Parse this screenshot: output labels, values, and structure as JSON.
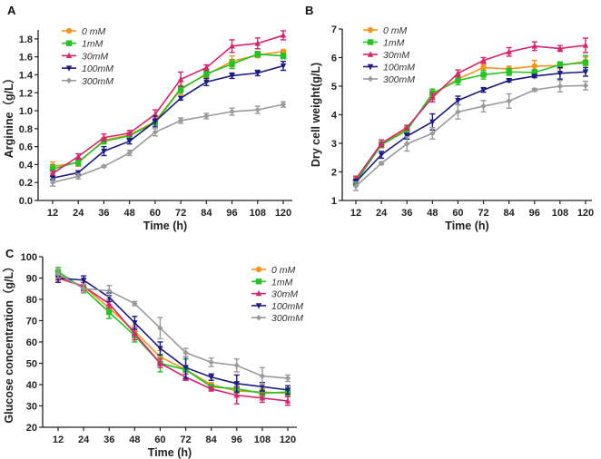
{
  "colors": {
    "0 mM": "#F7941D",
    "1mM": "#22C322",
    "30mM": "#D6246E",
    "100mM": "#1C1C82",
    "300mM": "#9A9A9A"
  },
  "markers": {
    "0 mM": "circle",
    "1mM": "square",
    "30mM": "triangle-up",
    "100mM": "triangle-down",
    "300mM": "diamond"
  },
  "chart_data": [
    {
      "panel": "A",
      "type": "line",
      "xlabel": "Time (h)",
      "ylabel": "Arginine（g/L）",
      "x": [
        12,
        24,
        36,
        48,
        60,
        72,
        84,
        96,
        108,
        120
      ],
      "ylim": [
        0,
        1.9
      ],
      "yticks": [
        "0.0",
        "0.2",
        "0.4",
        "0.6",
        "0.8",
        "1.0",
        "1.2",
        "1.4",
        "1.6",
        "1.8"
      ],
      "legend": "top-left",
      "series": [
        {
          "name": "0 mM",
          "values": [
            0.38,
            0.42,
            0.67,
            0.73,
            0.88,
            1.25,
            1.4,
            1.55,
            1.62,
            1.66
          ],
          "err": [
            0.05,
            0.04,
            0.03,
            0.03,
            0.04,
            0.07,
            0.03,
            0.06,
            0.03,
            0.02
          ]
        },
        {
          "name": "1mM",
          "values": [
            0.35,
            0.43,
            0.66,
            0.72,
            0.87,
            1.24,
            1.41,
            1.52,
            1.63,
            1.61
          ],
          "err": [
            0.05,
            0.04,
            0.03,
            0.03,
            0.03,
            0.04,
            0.03,
            0.05,
            0.03,
            0.03
          ]
        },
        {
          "name": "30mM",
          "values": [
            0.3,
            0.49,
            0.7,
            0.75,
            0.96,
            1.35,
            1.48,
            1.72,
            1.75,
            1.84
          ],
          "err": [
            0.03,
            0.03,
            0.04,
            0.03,
            0.05,
            0.08,
            0.03,
            0.07,
            0.06,
            0.05
          ]
        },
        {
          "name": "100mM",
          "values": [
            0.25,
            0.31,
            0.55,
            0.66,
            0.88,
            1.14,
            1.32,
            1.39,
            1.42,
            1.5
          ],
          "err": [
            0.02,
            0.02,
            0.05,
            0.03,
            0.06,
            0.02,
            0.04,
            0.03,
            0.03,
            0.05
          ]
        },
        {
          "name": "300mM",
          "values": [
            0.2,
            0.27,
            0.38,
            0.53,
            0.76,
            0.89,
            0.94,
            0.99,
            1.01,
            1.07
          ],
          "err": [
            0.04,
            0.03,
            0.01,
            0.03,
            0.04,
            0.03,
            0.03,
            0.04,
            0.04,
            0.03
          ]
        }
      ]
    },
    {
      "panel": "B",
      "type": "line",
      "xlabel": "Time (h)",
      "ylabel": "Dry cell weight(g/L)",
      "x": [
        12,
        24,
        36,
        48,
        60,
        72,
        84,
        96,
        108,
        120
      ],
      "ylim": [
        1,
        7
      ],
      "yticks": [
        "1",
        "2",
        "3",
        "4",
        "5",
        "6",
        "7"
      ],
      "legend": "top-left",
      "series": [
        {
          "name": "0 mM",
          "values": [
            1.7,
            2.95,
            3.5,
            4.7,
            5.25,
            5.65,
            5.6,
            5.7,
            5.72,
            5.87
          ],
          "err": [
            0.1,
            0.1,
            0.1,
            0.15,
            0.1,
            0.1,
            0.1,
            0.2,
            0.1,
            0.15
          ]
        },
        {
          "name": "1mM",
          "values": [
            1.65,
            2.95,
            3.45,
            4.75,
            5.2,
            5.4,
            5.5,
            5.48,
            5.75,
            5.82
          ],
          "err": [
            0.1,
            0.1,
            0.1,
            0.15,
            0.15,
            0.15,
            0.12,
            0.1,
            0.1,
            0.25
          ]
        },
        {
          "name": "30mM",
          "values": [
            1.75,
            3.0,
            3.55,
            4.6,
            5.45,
            5.9,
            6.2,
            6.4,
            6.32,
            6.43
          ],
          "err": [
            0.1,
            0.12,
            0.08,
            0.15,
            0.12,
            0.1,
            0.15,
            0.15,
            0.1,
            0.25
          ]
        },
        {
          "name": "100mM",
          "values": [
            1.65,
            2.6,
            3.25,
            3.75,
            4.5,
            4.87,
            5.2,
            5.35,
            5.45,
            5.5
          ],
          "err": [
            0.1,
            0.12,
            0.1,
            0.28,
            0.15,
            0.08,
            0.05,
            0.05,
            0.2,
            0.15
          ]
        },
        {
          "name": "300mM",
          "values": [
            1.5,
            2.3,
            2.98,
            3.35,
            4.1,
            4.3,
            4.48,
            4.87,
            5.0,
            5.02
          ],
          "err": [
            0.15,
            0.05,
            0.25,
            0.2,
            0.25,
            0.2,
            0.25,
            0.05,
            0.2,
            0.15
          ]
        }
      ]
    },
    {
      "panel": "C",
      "type": "line",
      "xlabel": "Time (h)",
      "ylabel": "Glucose concentration（g/L）",
      "x": [
        12,
        24,
        36,
        48,
        60,
        72,
        84,
        96,
        108,
        120
      ],
      "ylim": [
        20,
        100
      ],
      "yticks": [
        "20",
        "30",
        "40",
        "50",
        "60",
        "70",
        "80",
        "90",
        "100"
      ],
      "legend": "top-right",
      "series": [
        {
          "name": "0 mM",
          "values": [
            91,
            86,
            76,
            65,
            53,
            47,
            40,
            37,
            36.5,
            36
          ],
          "err": [
            2,
            2,
            3,
            3,
            3,
            2,
            1,
            2,
            1.5,
            1.5
          ]
        },
        {
          "name": "1mM",
          "values": [
            93,
            85,
            74,
            63,
            50,
            47,
            39,
            38,
            36,
            36.5
          ],
          "err": [
            2,
            2,
            3,
            3,
            4,
            5,
            1,
            2,
            1.5,
            2
          ]
        },
        {
          "name": "30mM",
          "values": [
            90,
            86,
            78,
            64,
            50,
            43.5,
            38,
            35,
            33.7,
            32.3
          ],
          "err": [
            2,
            2,
            2,
            3,
            2,
            1.5,
            1,
            4,
            2,
            2
          ]
        },
        {
          "name": "100mM",
          "values": [
            90,
            89,
            81,
            69,
            57,
            48,
            43.5,
            40.5,
            39,
            37.5
          ],
          "err": [
            2,
            2,
            2,
            3,
            3,
            5,
            1.5,
            4,
            2,
            2
          ]
        },
        {
          "name": "300mM",
          "values": [
            92,
            85,
            84,
            78,
            66.5,
            55,
            50.5,
            49,
            44,
            43
          ],
          "err": [
            2,
            2,
            2.5,
            1,
            5,
            2,
            2,
            3,
            4,
            1.5
          ]
        }
      ]
    }
  ]
}
